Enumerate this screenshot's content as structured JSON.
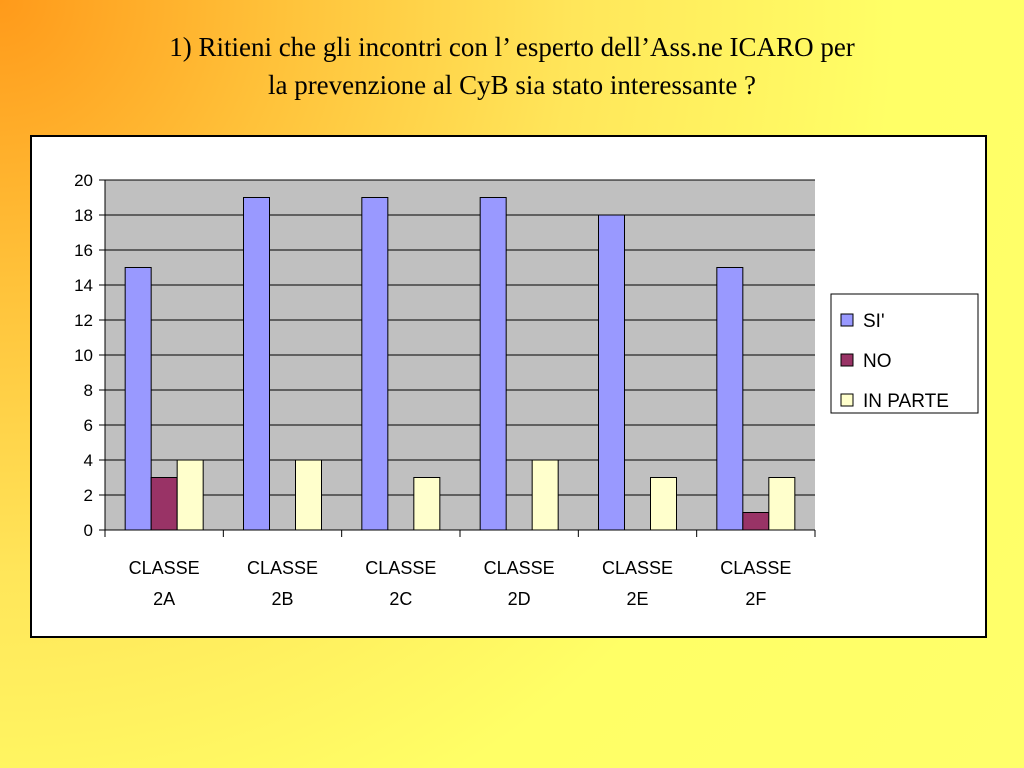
{
  "slide": {
    "title_line1": "1) Ritieni che gli incontri con l’ esperto dell’Ass.ne ICARO  per",
    "title_line2": "la prevenzione al CyB sia stato interessante ?"
  },
  "chart_data": {
    "type": "bar",
    "categories": [
      [
        "CLASSE",
        "2A"
      ],
      [
        "CLASSE",
        "2B"
      ],
      [
        "CLASSE",
        "2C"
      ],
      [
        "CLASSE",
        "2D"
      ],
      [
        "CLASSE",
        "2E"
      ],
      [
        "CLASSE",
        "2F"
      ]
    ],
    "series": [
      {
        "name": "SI'",
        "color": "#9999ff",
        "values": [
          15,
          19,
          19,
          19,
          18,
          15
        ]
      },
      {
        "name": "NO",
        "color": "#993366",
        "values": [
          3,
          0,
          0,
          0,
          0,
          1
        ]
      },
      {
        "name": "IN PARTE",
        "color": "#ffffcc",
        "values": [
          4,
          4,
          3,
          4,
          3,
          3
        ]
      }
    ],
    "ylim": [
      0,
      20
    ],
    "yticks": [
      0,
      2,
      4,
      6,
      8,
      10,
      12,
      14,
      16,
      18,
      20
    ],
    "grid": true,
    "plot_background": "#c0c0c0",
    "legend_position": "right"
  }
}
